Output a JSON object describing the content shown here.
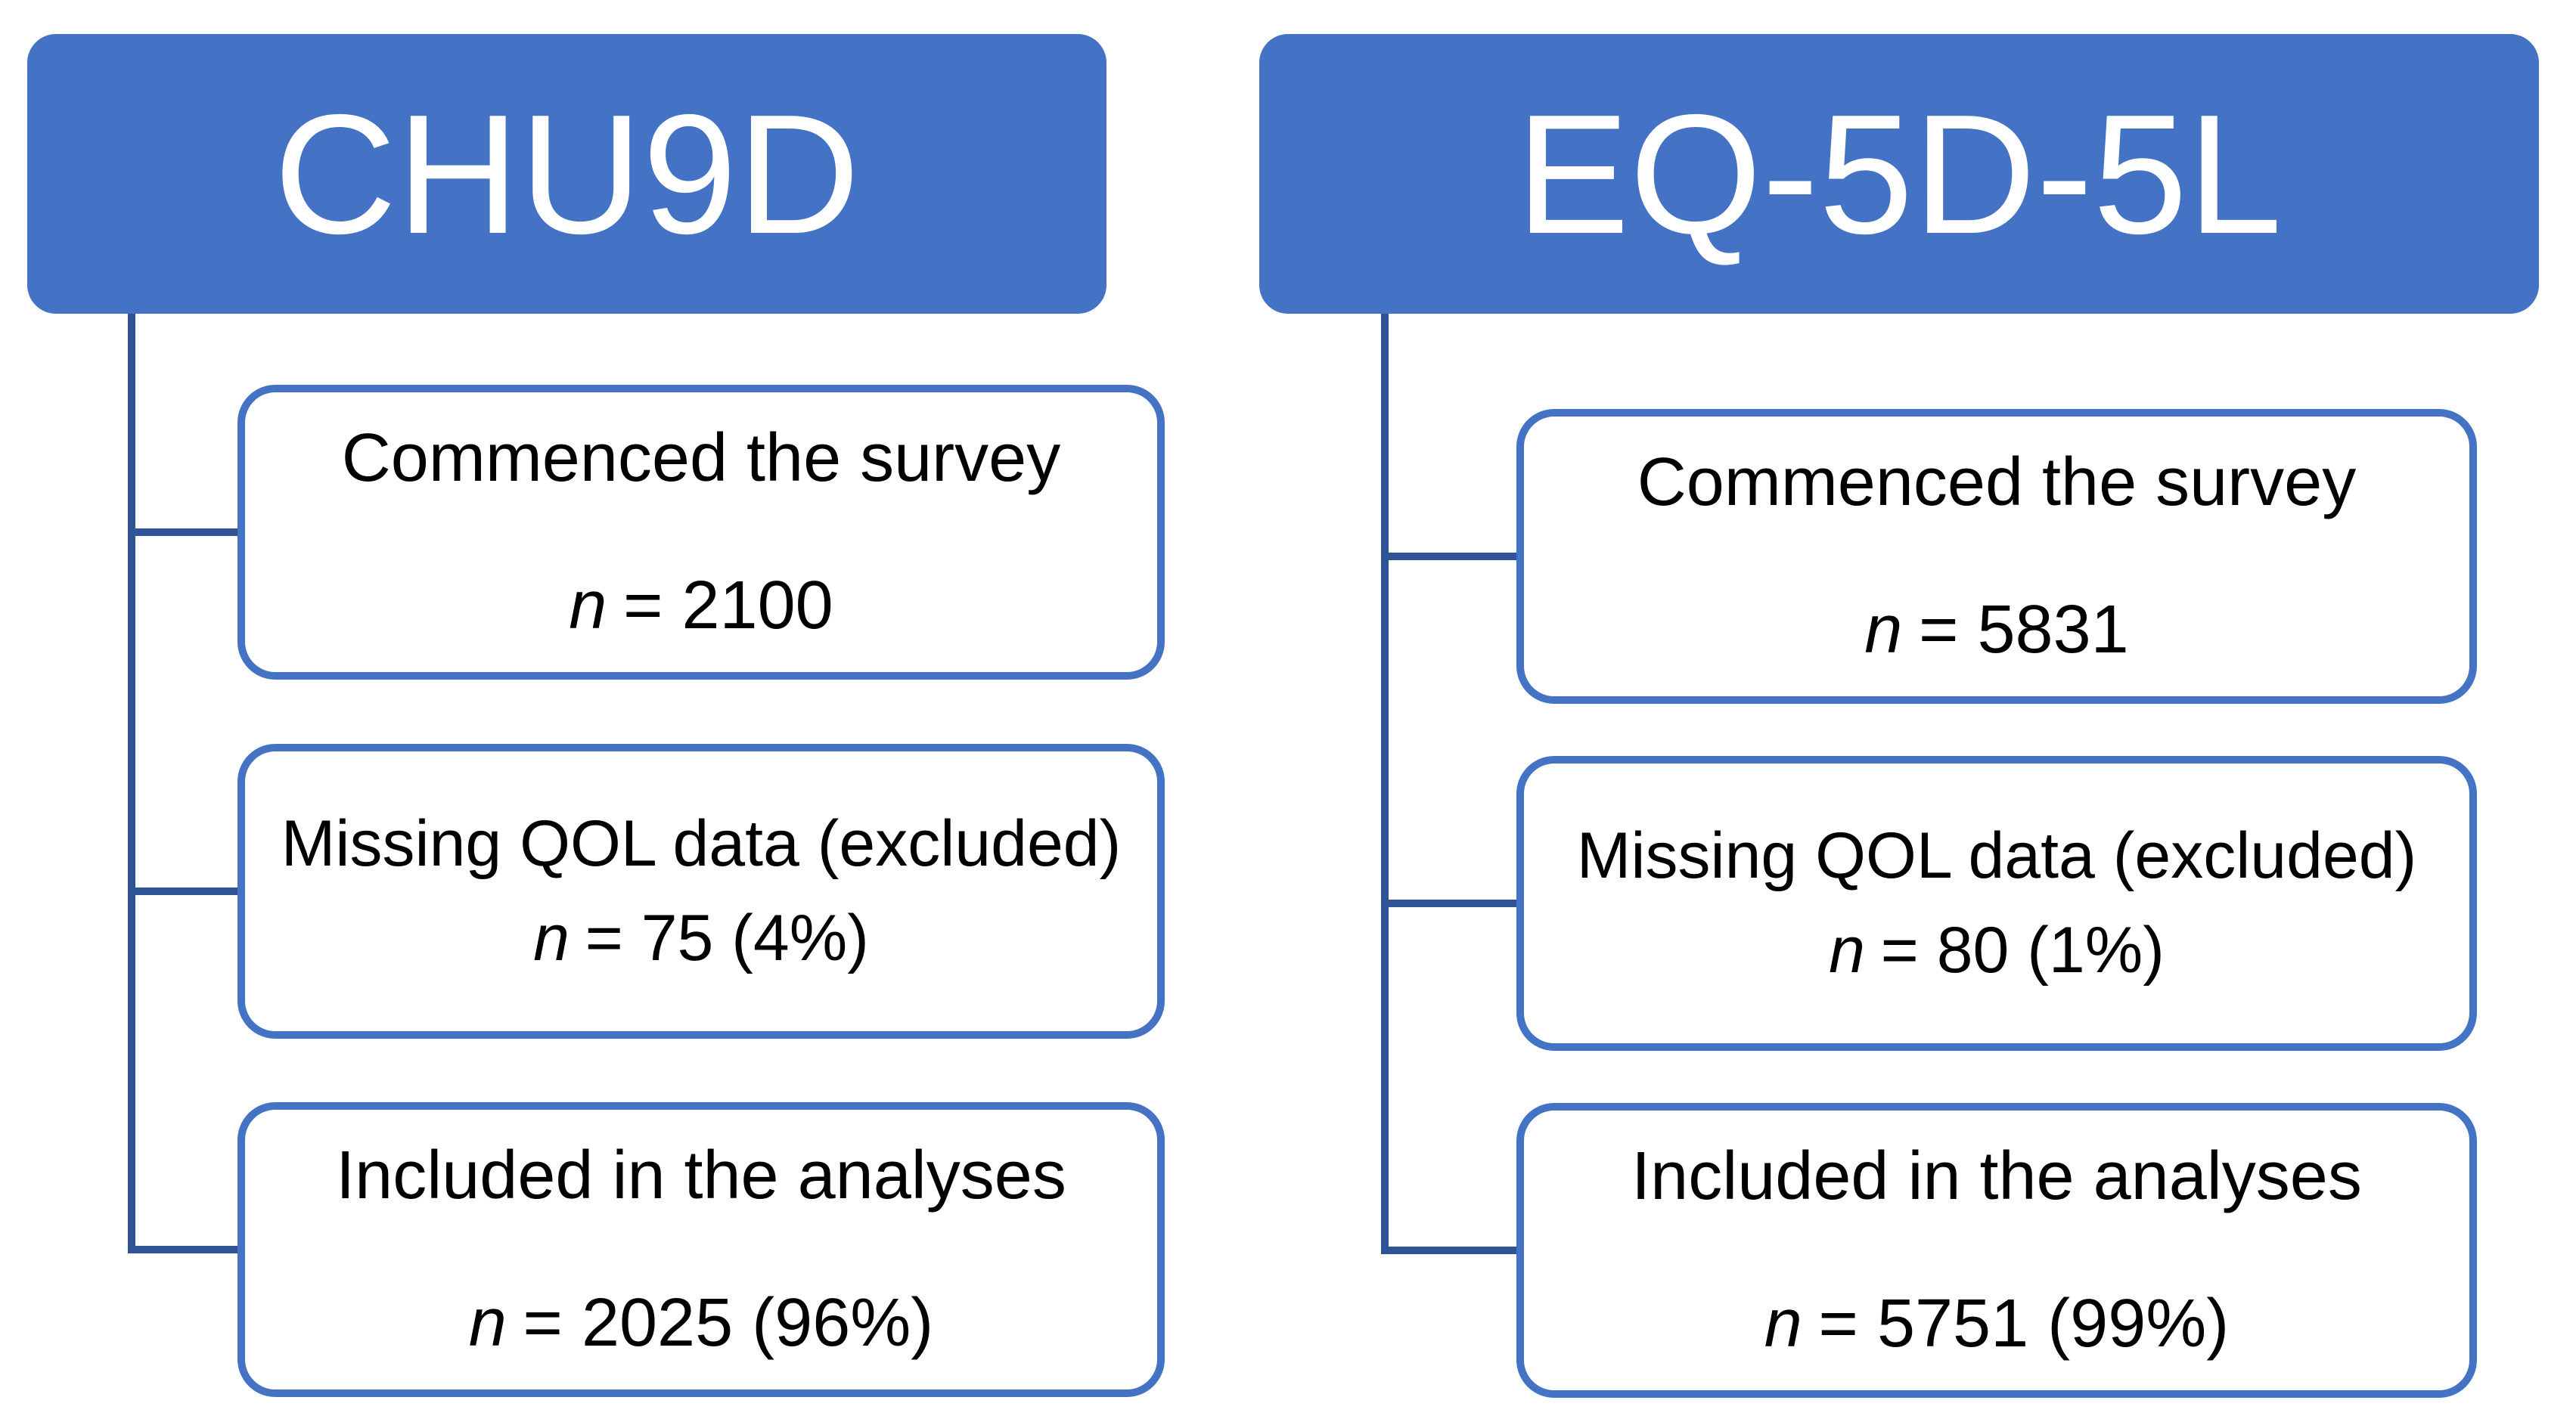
{
  "diagram": {
    "type": "flowchart",
    "colors": {
      "header_fill": "#4472C4",
      "box_border": "#4472C4",
      "connector_line": "#2F5496",
      "header_text": "#ffffff",
      "body_text": "#000000"
    },
    "columns": [
      {
        "title": "CHU9D",
        "boxes": [
          {
            "label": "Commenced the survey",
            "n_symbol": "n",
            "n_rest": "= 2100"
          },
          {
            "label": "Missing QOL data (excluded)",
            "n_symbol": "n",
            "n_rest": "= 75 (4%)"
          },
          {
            "label": "Included in the analyses",
            "n_symbol": "n",
            "n_rest": "= 2025 (96%)"
          }
        ]
      },
      {
        "title": "EQ-5D-5L",
        "boxes": [
          {
            "label": "Commenced the survey",
            "n_symbol": "n",
            "n_rest": "= 5831"
          },
          {
            "label": "Missing QOL data (excluded)",
            "n_symbol": "n",
            "n_rest": "= 80 (1%)"
          },
          {
            "label": "Included in the analyses",
            "n_symbol": "n",
            "n_rest": "= 5751 (99%)"
          }
        ]
      }
    ]
  }
}
